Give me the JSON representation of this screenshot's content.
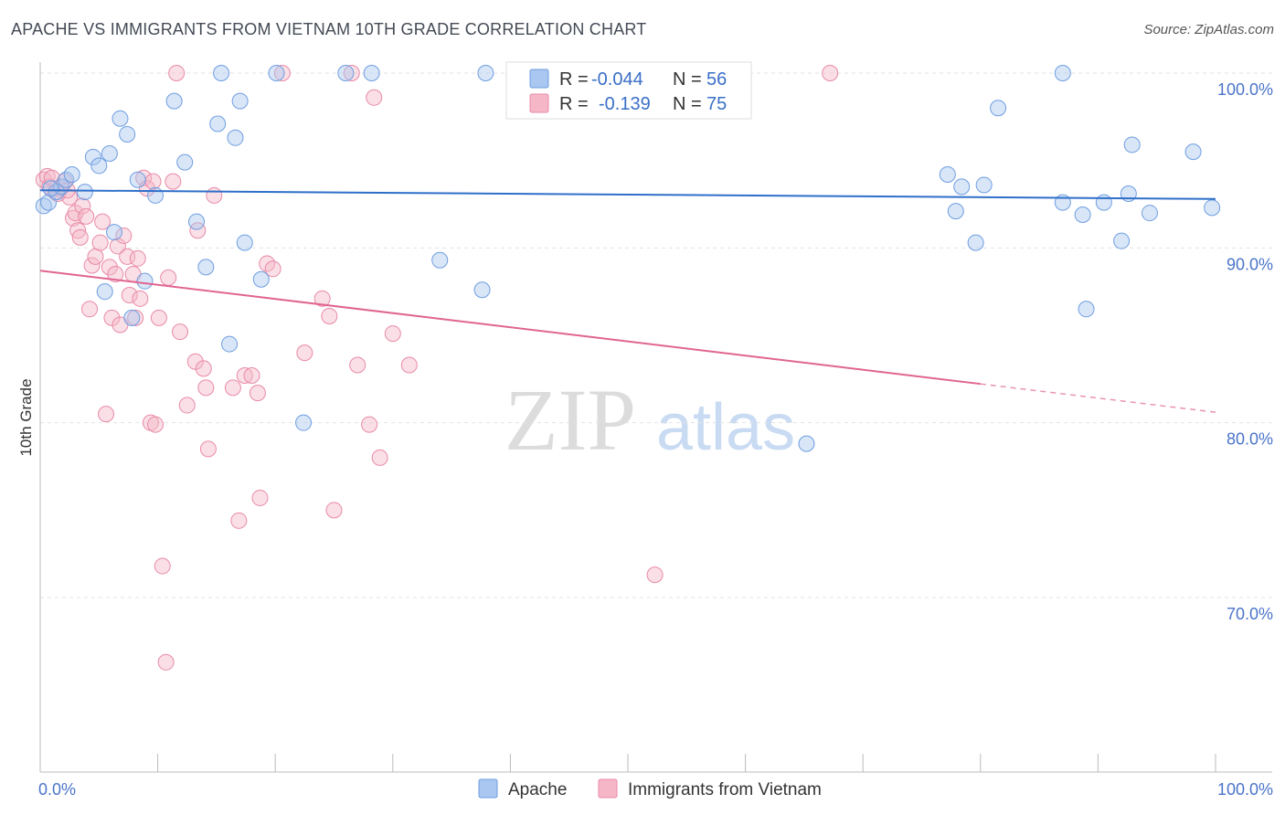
{
  "title": "APACHE VS IMMIGRANTS FROM VIETNAM 10TH GRADE CORRELATION CHART",
  "source": "Source: ZipAtlas.com",
  "watermark": {
    "zip": "ZIP",
    "atlas": "atlas"
  },
  "colors": {
    "apache_fill": "#a9c7f0",
    "apache_stroke": "#6f9ee0",
    "apache_line": "#2f6fc9",
    "vietnam_fill": "#f5b7c8",
    "vietnam_stroke": "#e98aa8",
    "vietnam_line": "#e06591",
    "tick_label": "#4a74c9",
    "grid": "#e3e3e3"
  },
  "legend": {
    "r_label": "R =",
    "n_label": "N =",
    "apache": {
      "r": "-0.044",
      "n": "56"
    },
    "vietnam": {
      "r": "-0.139",
      "n": "75"
    }
  },
  "chart_data": {
    "type": "scatter",
    "title": "APACHE VS IMMIGRANTS FROM VIETNAM 10TH GRADE CORRELATION CHART",
    "xlabel": "",
    "ylabel": "10th Grade",
    "xlim": [
      0,
      100
    ],
    "ylim": [
      60.5,
      101.5
    ],
    "x_tick_labels": [
      "0.0%",
      "100.0%"
    ],
    "y_ticks": [
      100,
      90,
      80,
      70
    ],
    "y_tick_labels": [
      "100.0%",
      "90.0%",
      "80.0%",
      "70.0%"
    ],
    "grid": true,
    "legend_position": "top-center",
    "series": [
      {
        "name": "Apache",
        "trend": {
          "x": [
            0,
            100
          ],
          "y": [
            93.3,
            92.8
          ],
          "dashed_from": null
        },
        "points": [
          [
            0.3,
            92.4
          ],
          [
            0.7,
            92.6
          ],
          [
            1.4,
            93.2
          ],
          [
            1.8,
            93.5
          ],
          [
            2.2,
            93.9
          ],
          [
            2.7,
            94.2
          ],
          [
            3.8,
            93.2
          ],
          [
            4.5,
            95.2
          ],
          [
            5.0,
            94.7
          ],
          [
            5.5,
            87.5
          ],
          [
            5.9,
            95.4
          ],
          [
            6.3,
            90.9
          ],
          [
            6.8,
            97.4
          ],
          [
            7.4,
            96.5
          ],
          [
            7.8,
            86.0
          ],
          [
            8.3,
            93.9
          ],
          [
            8.9,
            88.1
          ],
          [
            9.8,
            93.0
          ],
          [
            11.4,
            98.4
          ],
          [
            12.3,
            94.9
          ],
          [
            13.3,
            91.5
          ],
          [
            14.1,
            88.9
          ],
          [
            15.1,
            97.1
          ],
          [
            15.4,
            100.0
          ],
          [
            16.1,
            84.5
          ],
          [
            16.6,
            96.3
          ],
          [
            17.0,
            98.4
          ],
          [
            17.4,
            90.3
          ],
          [
            18.8,
            88.2
          ],
          [
            20.1,
            100.0
          ],
          [
            22.4,
            80.0
          ],
          [
            26.0,
            100.0
          ],
          [
            28.2,
            100.0
          ],
          [
            34.0,
            89.3
          ],
          [
            37.6,
            87.6
          ],
          [
            37.9,
            100.0
          ],
          [
            42.5,
            100.0
          ],
          [
            65.2,
            78.8
          ],
          [
            77.2,
            94.2
          ],
          [
            77.9,
            92.1
          ],
          [
            78.4,
            93.5
          ],
          [
            79.6,
            90.3
          ],
          [
            80.3,
            93.6
          ],
          [
            81.5,
            98.0
          ],
          [
            87.0,
            100.0
          ],
          [
            87.0,
            92.6
          ],
          [
            88.7,
            91.9
          ],
          [
            89.0,
            86.5
          ],
          [
            90.5,
            92.6
          ],
          [
            92.0,
            90.4
          ],
          [
            92.6,
            93.1
          ],
          [
            92.9,
            95.9
          ],
          [
            94.4,
            92.0
          ],
          [
            98.1,
            95.5
          ],
          [
            99.7,
            92.3
          ],
          [
            0.9,
            93.4
          ]
        ]
      },
      {
        "name": "Immigrants from Vietnam",
        "trend": {
          "x": [
            0,
            100
          ],
          "y": [
            88.7,
            80.6
          ],
          "dashed_from": 80
        },
        "points": [
          [
            0.3,
            93.9
          ],
          [
            0.6,
            94.1
          ],
          [
            0.8,
            93.5
          ],
          [
            1.0,
            94.0
          ],
          [
            1.3,
            93.2
          ],
          [
            1.7,
            93.4
          ],
          [
            2.1,
            93.8
          ],
          [
            2.5,
            92.9
          ],
          [
            2.8,
            91.7
          ],
          [
            3.0,
            92.0
          ],
          [
            3.2,
            91.0
          ],
          [
            3.4,
            90.6
          ],
          [
            3.6,
            92.4
          ],
          [
            3.9,
            91.8
          ],
          [
            4.2,
            86.5
          ],
          [
            4.4,
            89.0
          ],
          [
            4.7,
            89.5
          ],
          [
            5.1,
            90.3
          ],
          [
            5.3,
            91.5
          ],
          [
            5.6,
            80.5
          ],
          [
            5.9,
            88.9
          ],
          [
            6.1,
            86.0
          ],
          [
            6.4,
            88.5
          ],
          [
            6.6,
            90.1
          ],
          [
            6.8,
            85.6
          ],
          [
            7.1,
            90.7
          ],
          [
            7.4,
            89.5
          ],
          [
            7.6,
            87.3
          ],
          [
            7.9,
            88.5
          ],
          [
            8.1,
            86.0
          ],
          [
            8.3,
            89.4
          ],
          [
            8.5,
            87.1
          ],
          [
            8.8,
            94.0
          ],
          [
            9.1,
            93.4
          ],
          [
            9.4,
            80.0
          ],
          [
            9.6,
            93.8
          ],
          [
            9.8,
            79.9
          ],
          [
            10.1,
            86.0
          ],
          [
            10.4,
            71.8
          ],
          [
            10.7,
            66.3
          ],
          [
            10.9,
            88.3
          ],
          [
            11.3,
            93.8
          ],
          [
            11.6,
            100.0
          ],
          [
            11.9,
            85.2
          ],
          [
            12.5,
            81.0
          ],
          [
            13.2,
            83.5
          ],
          [
            13.4,
            91.0
          ],
          [
            13.9,
            83.1
          ],
          [
            14.1,
            82.0
          ],
          [
            14.3,
            78.5
          ],
          [
            14.8,
            93.0
          ],
          [
            16.4,
            82.0
          ],
          [
            16.9,
            74.4
          ],
          [
            17.4,
            82.7
          ],
          [
            18.0,
            82.7
          ],
          [
            18.5,
            81.7
          ],
          [
            18.7,
            75.7
          ],
          [
            19.3,
            89.1
          ],
          [
            19.8,
            88.8
          ],
          [
            20.6,
            100.0
          ],
          [
            22.5,
            84.0
          ],
          [
            24.0,
            87.1
          ],
          [
            24.6,
            86.1
          ],
          [
            25.0,
            75.0
          ],
          [
            26.5,
            100.0
          ],
          [
            27.0,
            83.3
          ],
          [
            28.0,
            79.9
          ],
          [
            28.4,
            98.6
          ],
          [
            28.9,
            78.0
          ],
          [
            30.0,
            85.1
          ],
          [
            31.4,
            83.3
          ],
          [
            52.3,
            71.3
          ],
          [
            67.2,
            100.0
          ],
          [
            1.5,
            93.1
          ],
          [
            2.3,
            93.3
          ]
        ]
      }
    ]
  },
  "bottom_legend": {
    "apache": "Apache",
    "vietnam": "Immigrants from Vietnam"
  }
}
